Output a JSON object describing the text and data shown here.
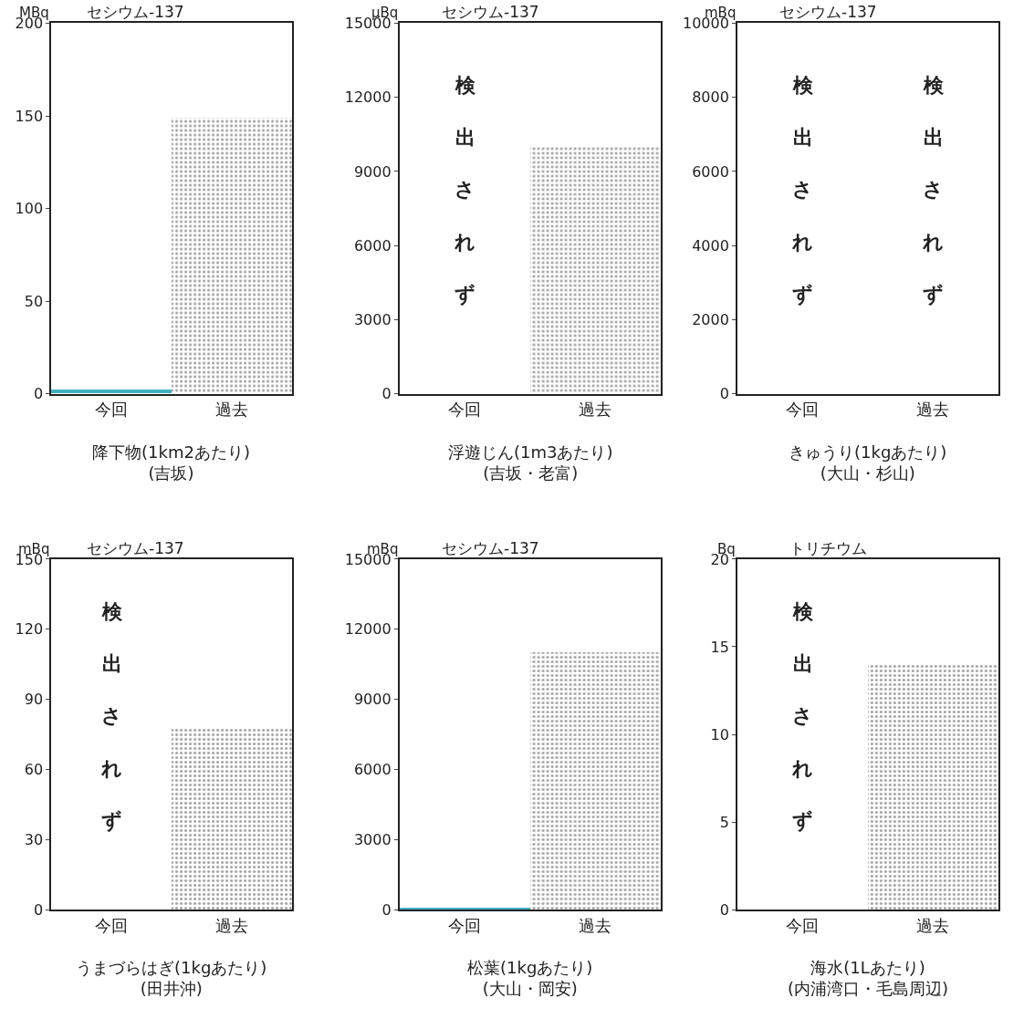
{
  "chart_data": [
    {
      "type": "bar",
      "title": "セシウム-137",
      "ylabel": "MBq",
      "xlabel": "降下物(1km2あたり)\n(吉坂)",
      "categories": [
        "今回",
        "過去"
      ],
      "values": [
        2,
        149
      ],
      "colors": [
        "#40b0c0",
        "#ffffff"
      ],
      "ylim": [
        0,
        200
      ],
      "yticks": [
        0,
        50,
        100,
        150,
        200
      ]
    },
    {
      "type": "bar",
      "title": "セシウム-137",
      "ylabel": "μBq",
      "xlabel": "浮遊じん(1m3あたり)\n(吉坂・老富)",
      "categories": [
        "今回",
        "過去"
      ],
      "values": [
        null,
        10000
      ],
      "colors": [
        "#40b0c0",
        "#ffffff"
      ],
      "ylim": [
        0,
        15000
      ],
      "yticks": [
        0,
        3000,
        6000,
        9000,
        12000,
        15000
      ],
      "annotations": [
        "検出されず"
      ]
    },
    {
      "type": "bar",
      "title": "セシウム-137",
      "ylabel": "mBq",
      "xlabel": "きゅうり(1kgあたり)\n(大山・杉山)",
      "categories": [
        "今回",
        "過去"
      ],
      "values": [
        null,
        null
      ],
      "colors": [
        "#40b0c0",
        "#ffffff"
      ],
      "ylim": [
        0,
        10000
      ],
      "yticks": [
        0,
        2000,
        4000,
        6000,
        8000,
        10000
      ],
      "annotations": [
        "検出されず",
        "検出されず"
      ]
    },
    {
      "type": "bar",
      "title": "セシウム-137",
      "ylabel": "mBq",
      "xlabel": "うまづらはぎ(1kgあたり)\n(田井沖)",
      "categories": [
        "今回",
        "過去"
      ],
      "values": [
        null,
        78
      ],
      "colors": [
        "#40b0c0",
        "#ffffff"
      ],
      "ylim": [
        0,
        150
      ],
      "yticks": [
        0,
        30,
        60,
        90,
        120,
        150
      ],
      "annotations": [
        "検出されず"
      ]
    },
    {
      "type": "bar",
      "title": "セシウム-137",
      "ylabel": "mBq",
      "xlabel": "松葉(1kgあたり)\n(大山・岡安)",
      "categories": [
        "今回",
        "過去"
      ],
      "values": [
        80,
        11000
      ],
      "colors": [
        "#40b0c0",
        "#ffffff"
      ],
      "ylim": [
        0,
        15000
      ],
      "yticks": [
        0,
        3000,
        6000,
        9000,
        12000,
        15000
      ]
    },
    {
      "type": "bar",
      "title": "トリチウム",
      "ylabel": "Bq",
      "xlabel": "海水(1Lあたり)\n(内浦湾口・毛島周辺)",
      "categories": [
        "今回",
        "過去"
      ],
      "values": [
        null,
        14
      ],
      "colors": [
        "#40b0c0",
        "#ffffff"
      ],
      "ylim": [
        0,
        20
      ],
      "yticks": [
        0,
        5,
        10,
        15,
        20
      ],
      "annotations": [
        "検出されず"
      ]
    }
  ]
}
